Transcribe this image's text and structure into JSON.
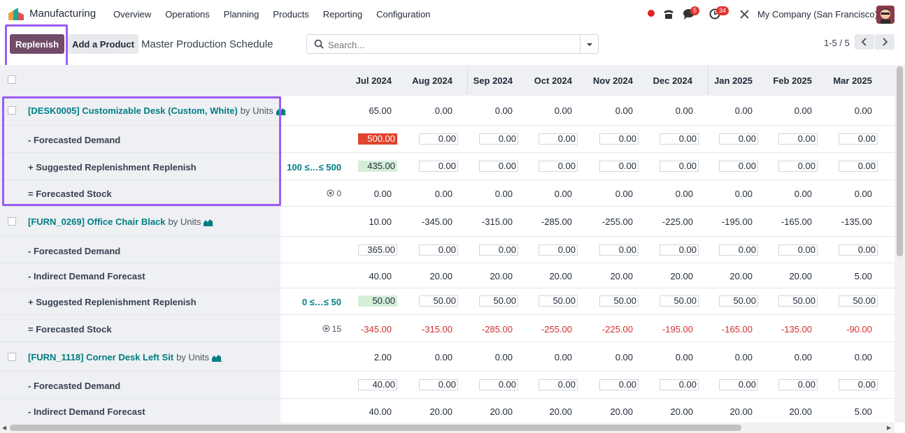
{
  "app": {
    "name": "Manufacturing"
  },
  "menu": [
    "Overview",
    "Operations",
    "Planning",
    "Products",
    "Reporting",
    "Configuration"
  ],
  "systray": {
    "messages_badge": "5",
    "activities_badge": "34",
    "company": "My Company (San Francisco)"
  },
  "toolbar": {
    "replenish_label": "Replenish",
    "add_product_label": "Add a Product",
    "title": "Master Production Schedule"
  },
  "search": {
    "placeholder": "Search..."
  },
  "pager": {
    "value": "1-5 / 5"
  },
  "columns": [
    "Jul 2024",
    "Aug 2024",
    "Sep 2024",
    "Oct 2024",
    "Nov 2024",
    "Dec 2024",
    "Jan 2025",
    "Feb 2025",
    "Mar 2025"
  ],
  "products": [
    {
      "name": "[DESK0005] Customizable Desk (Custom, White)",
      "units": "by Units",
      "stock_values": [
        "65.00",
        "0.00",
        "0.00",
        "0.00",
        "0.00",
        "0.00",
        "0.00",
        "0.00",
        "0.00"
      ],
      "demand_label": "- Forecasted Demand",
      "demand_values": [
        "500.00",
        "0.00",
        "0.00",
        "0.00",
        "0.00",
        "0.00",
        "0.00",
        "0.00",
        "0.00"
      ],
      "replenish_label": "+ Suggested Replenishment",
      "replenish_action": "Replenish",
      "replenish_range": "100 ≤…≤ 500",
      "replenish_values": [
        "435.00",
        "0.00",
        "0.00",
        "0.00",
        "0.00",
        "0.00",
        "0.00",
        "0.00",
        "0.00"
      ],
      "forecast_label": "= Forecasted Stock",
      "safety_stock": "0",
      "forecast_values": [
        "0.00",
        "0.00",
        "0.00",
        "0.00",
        "0.00",
        "0.00",
        "0.00",
        "0.00",
        "0.00"
      ]
    },
    {
      "name": "[FURN_0269] Office Chair Black",
      "units": "by Units",
      "stock_values": [
        "10.00",
        "-345.00",
        "-315.00",
        "-285.00",
        "-255.00",
        "-225.00",
        "-195.00",
        "-165.00",
        "-135.00"
      ],
      "demand_label": "- Forecasted Demand",
      "demand_values": [
        "365.00",
        "0.00",
        "0.00",
        "0.00",
        "0.00",
        "0.00",
        "0.00",
        "0.00",
        "0.00"
      ],
      "indirect_label": "- Indirect Demand Forecast",
      "indirect_values": [
        "40.00",
        "20.00",
        "20.00",
        "20.00",
        "20.00",
        "20.00",
        "20.00",
        "20.00",
        "5.00"
      ],
      "replenish_label": "+ Suggested Replenishment",
      "replenish_action": "Replenish",
      "replenish_range": "0 ≤…≤ 50",
      "replenish_values": [
        "50.00",
        "50.00",
        "50.00",
        "50.00",
        "50.00",
        "50.00",
        "50.00",
        "50.00",
        "50.00"
      ],
      "forecast_label": "= Forecasted Stock",
      "safety_stock": "15",
      "forecast_values": [
        "-345.00",
        "-315.00",
        "-285.00",
        "-255.00",
        "-225.00",
        "-195.00",
        "-165.00",
        "-135.00",
        "-90.00"
      ]
    },
    {
      "name": "[FURN_1118] Corner Desk Left Sit",
      "units": "by Units",
      "stock_values": [
        "2.00",
        "0.00",
        "0.00",
        "0.00",
        "0.00",
        "0.00",
        "0.00",
        "0.00",
        "0.00"
      ],
      "demand_label": "- Forecasted Demand",
      "demand_values": [
        "40.00",
        "0.00",
        "0.00",
        "0.00",
        "0.00",
        "0.00",
        "0.00",
        "0.00",
        "0.00"
      ],
      "indirect_label": "- Indirect Demand Forecast",
      "indirect_values": [
        "40.00",
        "20.00",
        "20.00",
        "20.00",
        "20.00",
        "20.00",
        "20.00",
        "20.00",
        "5.00"
      ]
    }
  ],
  "colors": {
    "accent": "#714b67",
    "link": "#017e84",
    "negative": "#d32f2f",
    "highlight": "#9b5cf6",
    "demand_alert": "#e0442f",
    "replenish_ok": "#d4eed8"
  }
}
